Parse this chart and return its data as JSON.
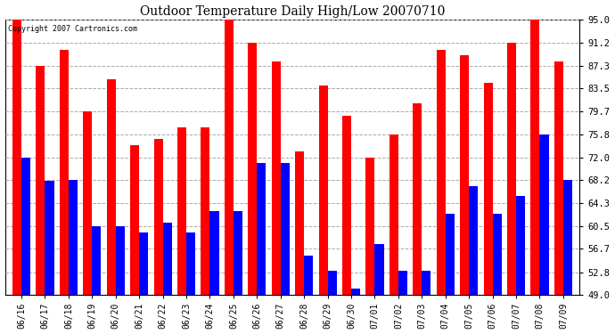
{
  "title": "Outdoor Temperature Daily High/Low 20070710",
  "copyright": "Copyright 2007 Cartronics.com",
  "dates": [
    "06/16",
    "06/17",
    "06/18",
    "06/19",
    "06/20",
    "06/21",
    "06/22",
    "06/23",
    "06/24",
    "06/25",
    "06/26",
    "06/27",
    "06/28",
    "06/29",
    "06/30",
    "07/01",
    "07/02",
    "07/03",
    "07/04",
    "07/05",
    "07/06",
    "07/07",
    "07/08",
    "07/09"
  ],
  "highs": [
    95.0,
    87.3,
    90.0,
    79.7,
    85.0,
    74.0,
    75.0,
    77.0,
    77.0,
    95.0,
    91.2,
    88.0,
    73.0,
    84.0,
    79.0,
    72.0,
    75.8,
    81.0,
    90.0,
    89.0,
    84.5,
    91.2,
    95.0,
    88.0
  ],
  "lows": [
    72.0,
    68.0,
    68.2,
    60.5,
    60.5,
    59.5,
    61.0,
    59.5,
    63.0,
    63.0,
    71.0,
    71.0,
    55.5,
    53.0,
    50.0,
    57.5,
    53.0,
    53.0,
    62.5,
    67.2,
    62.5,
    65.5,
    75.8,
    68.2
  ],
  "high_color": "#ff0000",
  "low_color": "#0000ff",
  "bg_color": "#ffffff",
  "plot_bg_color": "#ffffff",
  "grid_color": "#aaaaaa",
  "yticks": [
    49.0,
    52.8,
    56.7,
    60.5,
    64.3,
    68.2,
    72.0,
    75.8,
    79.7,
    83.5,
    87.3,
    91.2,
    95.0
  ],
  "ylim_min": 49.0,
  "ylim_max": 95.0,
  "bar_width": 0.38
}
